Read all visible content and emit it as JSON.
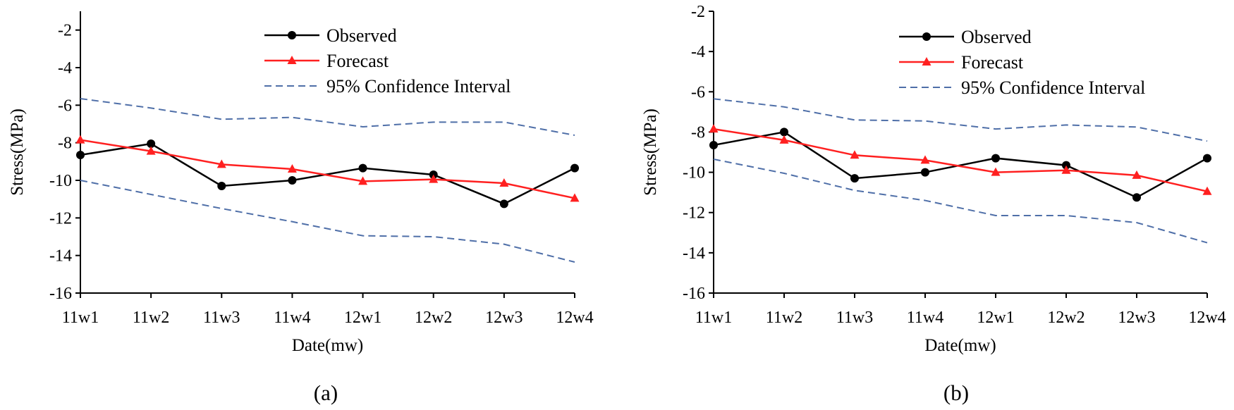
{
  "chart_data": [
    {
      "type": "line",
      "panel_label": "(a)",
      "xlabel": "Date(mw)",
      "ylabel": "Stress(MPa)",
      "ylim": [
        -16,
        -1
      ],
      "yticks": [
        -2,
        -4,
        -6,
        -8,
        -10,
        -12,
        -14,
        -16
      ],
      "categories": [
        "11w1",
        "11w2",
        "11w3",
        "11w4",
        "12w1",
        "12w2",
        "12w3",
        "12w4"
      ],
      "legend_position": "top-right",
      "series": [
        {
          "name": "Observed",
          "color": "#000000",
          "marker": "circle",
          "style": "solid",
          "values": [
            -8.65,
            -8.05,
            -10.3,
            -10.0,
            -9.35,
            -9.7,
            -11.25,
            -9.35
          ]
        },
        {
          "name": "Forecast",
          "color": "#ff2020",
          "marker": "triangle",
          "style": "solid",
          "values": [
            -7.85,
            -8.45,
            -9.15,
            -9.4,
            -10.05,
            -9.95,
            -10.15,
            -10.95
          ]
        },
        {
          "name": "95% Confidence Interval",
          "color": "#4f6fa8",
          "marker": "none",
          "style": "dashed",
          "values": [
            -5.65,
            -6.15,
            -6.75,
            -6.65,
            -7.15,
            -6.9,
            -6.9,
            -7.6
          ]
        },
        {
          "name": "95% Confidence Interval (lower)",
          "color": "#4f6fa8",
          "marker": "none",
          "style": "dashed",
          "in_legend": false,
          "values": [
            -10.0,
            -10.75,
            -11.5,
            -12.2,
            -12.95,
            -13.0,
            -13.4,
            -14.35
          ]
        }
      ]
    },
    {
      "type": "line",
      "panel_label": "(b)",
      "xlabel": "Date(mw)",
      "ylabel": "Stress(MPa)",
      "ylim": [
        -16,
        -2
      ],
      "yticks": [
        -2,
        -4,
        -6,
        -8,
        -10,
        -12,
        -14,
        -16
      ],
      "categories": [
        "11w1",
        "11w2",
        "11w3",
        "11w4",
        "12w1",
        "12w2",
        "12w3",
        "12w4"
      ],
      "legend_position": "top-right",
      "series": [
        {
          "name": "Observed",
          "color": "#000000",
          "marker": "circle",
          "style": "solid",
          "values": [
            -8.65,
            -8.0,
            -10.3,
            -10.0,
            -9.3,
            -9.65,
            -11.25,
            -9.3
          ]
        },
        {
          "name": "Forecast",
          "color": "#ff2020",
          "marker": "triangle",
          "style": "solid",
          "values": [
            -7.85,
            -8.4,
            -9.15,
            -9.4,
            -10.0,
            -9.9,
            -10.15,
            -10.95
          ]
        },
        {
          "name": "95% Confidence Interval",
          "color": "#4f6fa8",
          "marker": "none",
          "style": "dashed",
          "values": [
            -6.35,
            -6.75,
            -7.4,
            -7.45,
            -7.85,
            -7.65,
            -7.75,
            -8.45
          ]
        },
        {
          "name": "95% Confidence Interval (lower)",
          "color": "#4f6fa8",
          "marker": "none",
          "style": "dashed",
          "in_legend": false,
          "values": [
            -9.35,
            -10.05,
            -10.9,
            -11.4,
            -12.15,
            -12.15,
            -12.5,
            -13.5
          ]
        }
      ]
    }
  ]
}
